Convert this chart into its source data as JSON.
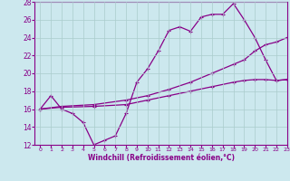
{
  "xlabel": "Windchill (Refroidissement éolien,°C)",
  "xlim": [
    -0.5,
    23
  ],
  "ylim": [
    12,
    28
  ],
  "xticks": [
    0,
    1,
    2,
    3,
    4,
    5,
    6,
    7,
    8,
    9,
    10,
    11,
    12,
    13,
    14,
    15,
    16,
    17,
    18,
    19,
    20,
    21,
    22,
    23
  ],
  "yticks": [
    12,
    14,
    16,
    18,
    20,
    22,
    24,
    26,
    28
  ],
  "bg_color": "#cce8ee",
  "line_color": "#880088",
  "grid_color": "#aacccc",
  "line1_x": [
    0,
    1,
    2,
    3,
    4,
    5,
    6,
    7,
    8,
    9,
    10,
    11,
    12,
    13,
    14,
    15,
    16,
    17,
    18,
    19,
    20,
    21,
    22,
    23
  ],
  "line1_y": [
    16.0,
    17.5,
    16.0,
    15.5,
    14.5,
    12.0,
    12.5,
    13.0,
    15.5,
    19.0,
    20.5,
    22.5,
    24.8,
    25.2,
    24.7,
    26.3,
    26.6,
    26.6,
    27.8,
    26.0,
    24.0,
    21.5,
    19.2,
    19.3
  ],
  "line2_x": [
    0,
    2,
    5,
    8,
    10,
    12,
    14,
    16,
    18,
    19,
    20,
    21,
    22,
    23
  ],
  "line2_y": [
    16.0,
    16.3,
    16.5,
    17.0,
    17.5,
    18.2,
    19.0,
    20.0,
    21.0,
    21.5,
    22.5,
    23.2,
    23.5,
    24.0
  ],
  "line3_x": [
    0,
    2,
    5,
    8,
    10,
    12,
    14,
    16,
    18,
    19,
    20,
    21,
    22,
    23
  ],
  "line3_y": [
    16.0,
    16.2,
    16.3,
    16.5,
    17.0,
    17.5,
    18.0,
    18.5,
    19.0,
    19.2,
    19.3,
    19.3,
    19.2,
    19.3
  ]
}
